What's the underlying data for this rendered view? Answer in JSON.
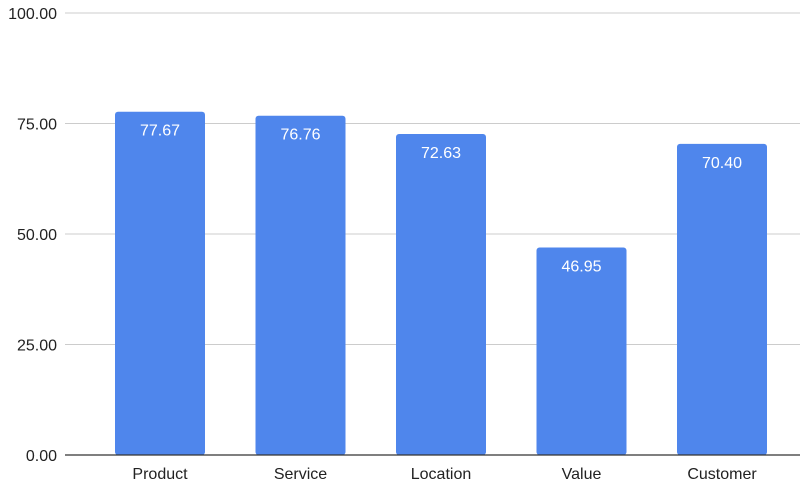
{
  "chart_data": {
    "type": "bar",
    "categories": [
      "Product",
      "Service",
      "Location",
      "Value",
      "Customer"
    ],
    "values": [
      77.67,
      76.76,
      72.63,
      46.95,
      70.4
    ],
    "data_labels": [
      "77.67",
      "76.76",
      "72.63",
      "46.95",
      "70.40"
    ],
    "y_ticks": [
      "0.00",
      "25.00",
      "50.00",
      "75.00",
      "100.00"
    ],
    "y_tick_values": [
      0,
      25,
      50,
      75,
      100
    ],
    "ylim": [
      0,
      100
    ],
    "title": "",
    "xlabel": "",
    "ylabel": "",
    "grid": true,
    "legend": "none",
    "bar_color": "#4f86ec"
  }
}
